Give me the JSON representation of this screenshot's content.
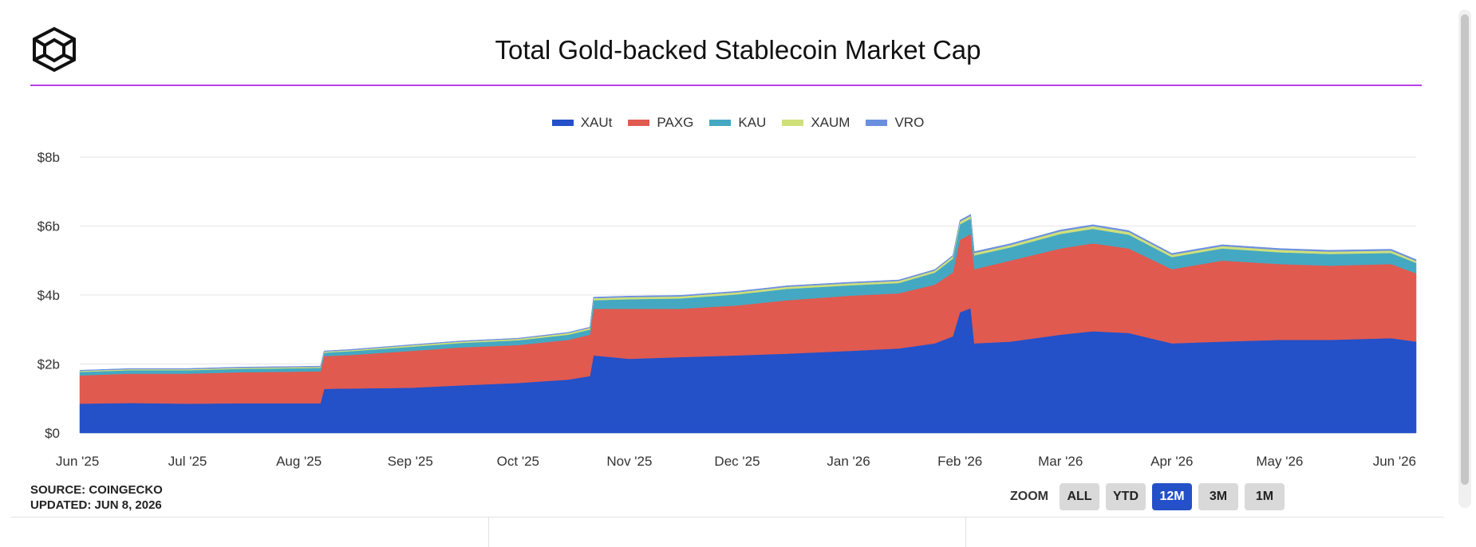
{
  "header": {
    "title": "Total Gold-backed Stablecoin Market Cap"
  },
  "legend": [
    {
      "label": "XAUt",
      "color": "#2450c8"
    },
    {
      "label": "PAXG",
      "color": "#e05a50"
    },
    {
      "label": "KAU",
      "color": "#45a8c2"
    },
    {
      "label": "XAUM",
      "color": "#cfe07a"
    },
    {
      "label": "VRO",
      "color": "#6b8fe0"
    }
  ],
  "footer": {
    "source": "SOURCE: COINGECKO",
    "updated": "UPDATED: JUN 8, 2026"
  },
  "zoom": {
    "label": "ZOOM",
    "options": [
      "ALL",
      "YTD",
      "12M",
      "3M",
      "1M"
    ],
    "active": "12M"
  },
  "chart_data": {
    "type": "area",
    "stacked": true,
    "title": "Total Gold-backed Stablecoin Market Cap",
    "x_tick_labels": [
      "Jun '25",
      "Jul '25",
      "Aug '25",
      "Sep '25",
      "Oct '25",
      "Nov '25",
      "Dec '25",
      "Jan '26",
      "Feb '26",
      "Mar '26",
      "Apr '26",
      "May '26",
      "Jun '26"
    ],
    "y_tick_labels": [
      "$0",
      "$2b",
      "$4b",
      "$6b",
      "$8b"
    ],
    "ylim": [
      0,
      8
    ],
    "y_unit": "billion USD",
    "grid": true,
    "legend_position": "top-center",
    "x": [
      "2025-06-01",
      "2025-06-15",
      "2025-07-01",
      "2025-07-15",
      "2025-08-01",
      "2025-08-07",
      "2025-08-08",
      "2025-08-15",
      "2025-09-01",
      "2025-09-15",
      "2025-10-01",
      "2025-10-15",
      "2025-10-21",
      "2025-10-22",
      "2025-11-01",
      "2025-11-15",
      "2025-12-01",
      "2025-12-15",
      "2026-01-01",
      "2026-01-15",
      "2026-01-25",
      "2026-01-30",
      "2026-02-01",
      "2026-02-04",
      "2026-02-05",
      "2026-02-15",
      "2026-03-01",
      "2026-03-10",
      "2026-03-20",
      "2026-04-01",
      "2026-04-15",
      "2026-05-01",
      "2026-05-15",
      "2026-06-01",
      "2026-06-08"
    ],
    "series": [
      {
        "name": "XAUt",
        "color": "#2450c8",
        "values": [
          0.85,
          0.87,
          0.85,
          0.86,
          0.86,
          0.86,
          1.28,
          1.29,
          1.31,
          1.38,
          1.45,
          1.55,
          1.65,
          2.25,
          2.15,
          2.2,
          2.25,
          2.3,
          2.38,
          2.45,
          2.6,
          2.8,
          3.5,
          3.62,
          2.6,
          2.65,
          2.85,
          2.95,
          2.9,
          2.6,
          2.65,
          2.7,
          2.7,
          2.75,
          2.65
        ]
      },
      {
        "name": "PAXG",
        "color": "#e05a50",
        "values": [
          0.82,
          0.85,
          0.87,
          0.9,
          0.92,
          0.93,
          0.95,
          0.97,
          1.07,
          1.1,
          1.1,
          1.15,
          1.2,
          1.35,
          1.45,
          1.4,
          1.45,
          1.55,
          1.6,
          1.6,
          1.7,
          1.85,
          2.1,
          2.15,
          2.15,
          2.35,
          2.5,
          2.55,
          2.45,
          2.15,
          2.35,
          2.2,
          2.15,
          2.15,
          1.98
        ]
      },
      {
        "name": "KAU",
        "color": "#45a8c2",
        "values": [
          0.1,
          0.1,
          0.1,
          0.1,
          0.1,
          0.1,
          0.1,
          0.11,
          0.12,
          0.13,
          0.14,
          0.15,
          0.15,
          0.25,
          0.28,
          0.3,
          0.32,
          0.33,
          0.3,
          0.3,
          0.35,
          0.4,
          0.45,
          0.45,
          0.4,
          0.38,
          0.42,
          0.42,
          0.4,
          0.35,
          0.35,
          0.34,
          0.34,
          0.32,
          0.3
        ]
      },
      {
        "name": "XAUM",
        "color": "#cfe07a",
        "values": [
          0.03,
          0.03,
          0.03,
          0.03,
          0.03,
          0.03,
          0.03,
          0.03,
          0.04,
          0.04,
          0.04,
          0.05,
          0.05,
          0.06,
          0.06,
          0.06,
          0.06,
          0.06,
          0.06,
          0.06,
          0.06,
          0.07,
          0.08,
          0.08,
          0.07,
          0.07,
          0.08,
          0.08,
          0.08,
          0.07,
          0.07,
          0.07,
          0.07,
          0.07,
          0.06
        ]
      },
      {
        "name": "VRO",
        "color": "#6b8fe0",
        "values": [
          0.02,
          0.02,
          0.02,
          0.02,
          0.02,
          0.02,
          0.02,
          0.02,
          0.02,
          0.02,
          0.02,
          0.02,
          0.02,
          0.03,
          0.03,
          0.03,
          0.03,
          0.03,
          0.03,
          0.03,
          0.03,
          0.03,
          0.04,
          0.04,
          0.04,
          0.04,
          0.04,
          0.04,
          0.04,
          0.04,
          0.04,
          0.04,
          0.04,
          0.04,
          0.04
        ]
      }
    ]
  }
}
